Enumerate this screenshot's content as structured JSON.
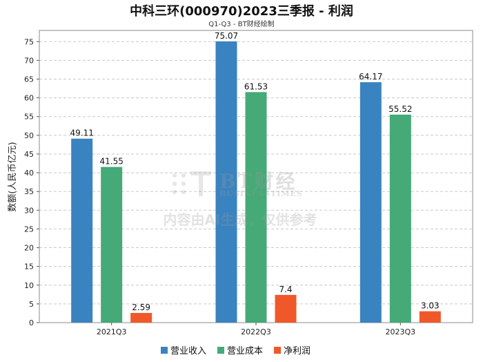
{
  "chart_data": {
    "type": "bar",
    "title": "中科三环(000970)2023三季报 - 利润",
    "subtitle": "Q1-Q3 - BT财经绘制",
    "xlabel": "",
    "ylabel": "数额(人民币亿元)",
    "ylim": [
      0,
      78
    ],
    "yticks": [
      0,
      5,
      10,
      15,
      20,
      25,
      30,
      35,
      40,
      45,
      50,
      55,
      60,
      65,
      70,
      75
    ],
    "grid": true,
    "legend_position": "bottom",
    "categories": [
      "2021Q3",
      "2022Q3",
      "2023Q3"
    ],
    "series": [
      {
        "name": "营业收入",
        "color": "#3a83c1",
        "values": [
          49.11,
          75.07,
          64.17
        ],
        "labels": [
          "49.11",
          "75.07",
          "64.17"
        ]
      },
      {
        "name": "营业成本",
        "color": "#45aa77",
        "values": [
          41.55,
          61.53,
          55.52
        ],
        "labels": [
          "41.55",
          "61.53",
          "55.52"
        ]
      },
      {
        "name": "净利润",
        "color": "#f0582a",
        "values": [
          2.59,
          7.4,
          3.03
        ],
        "labels": [
          "2.59",
          "7.4",
          "3.03"
        ]
      }
    ]
  },
  "watermark": {
    "brand": "BT财经",
    "brand_sub": "BUSINESSTIMES",
    "notice": "内容由AI生成，仅供参考"
  }
}
